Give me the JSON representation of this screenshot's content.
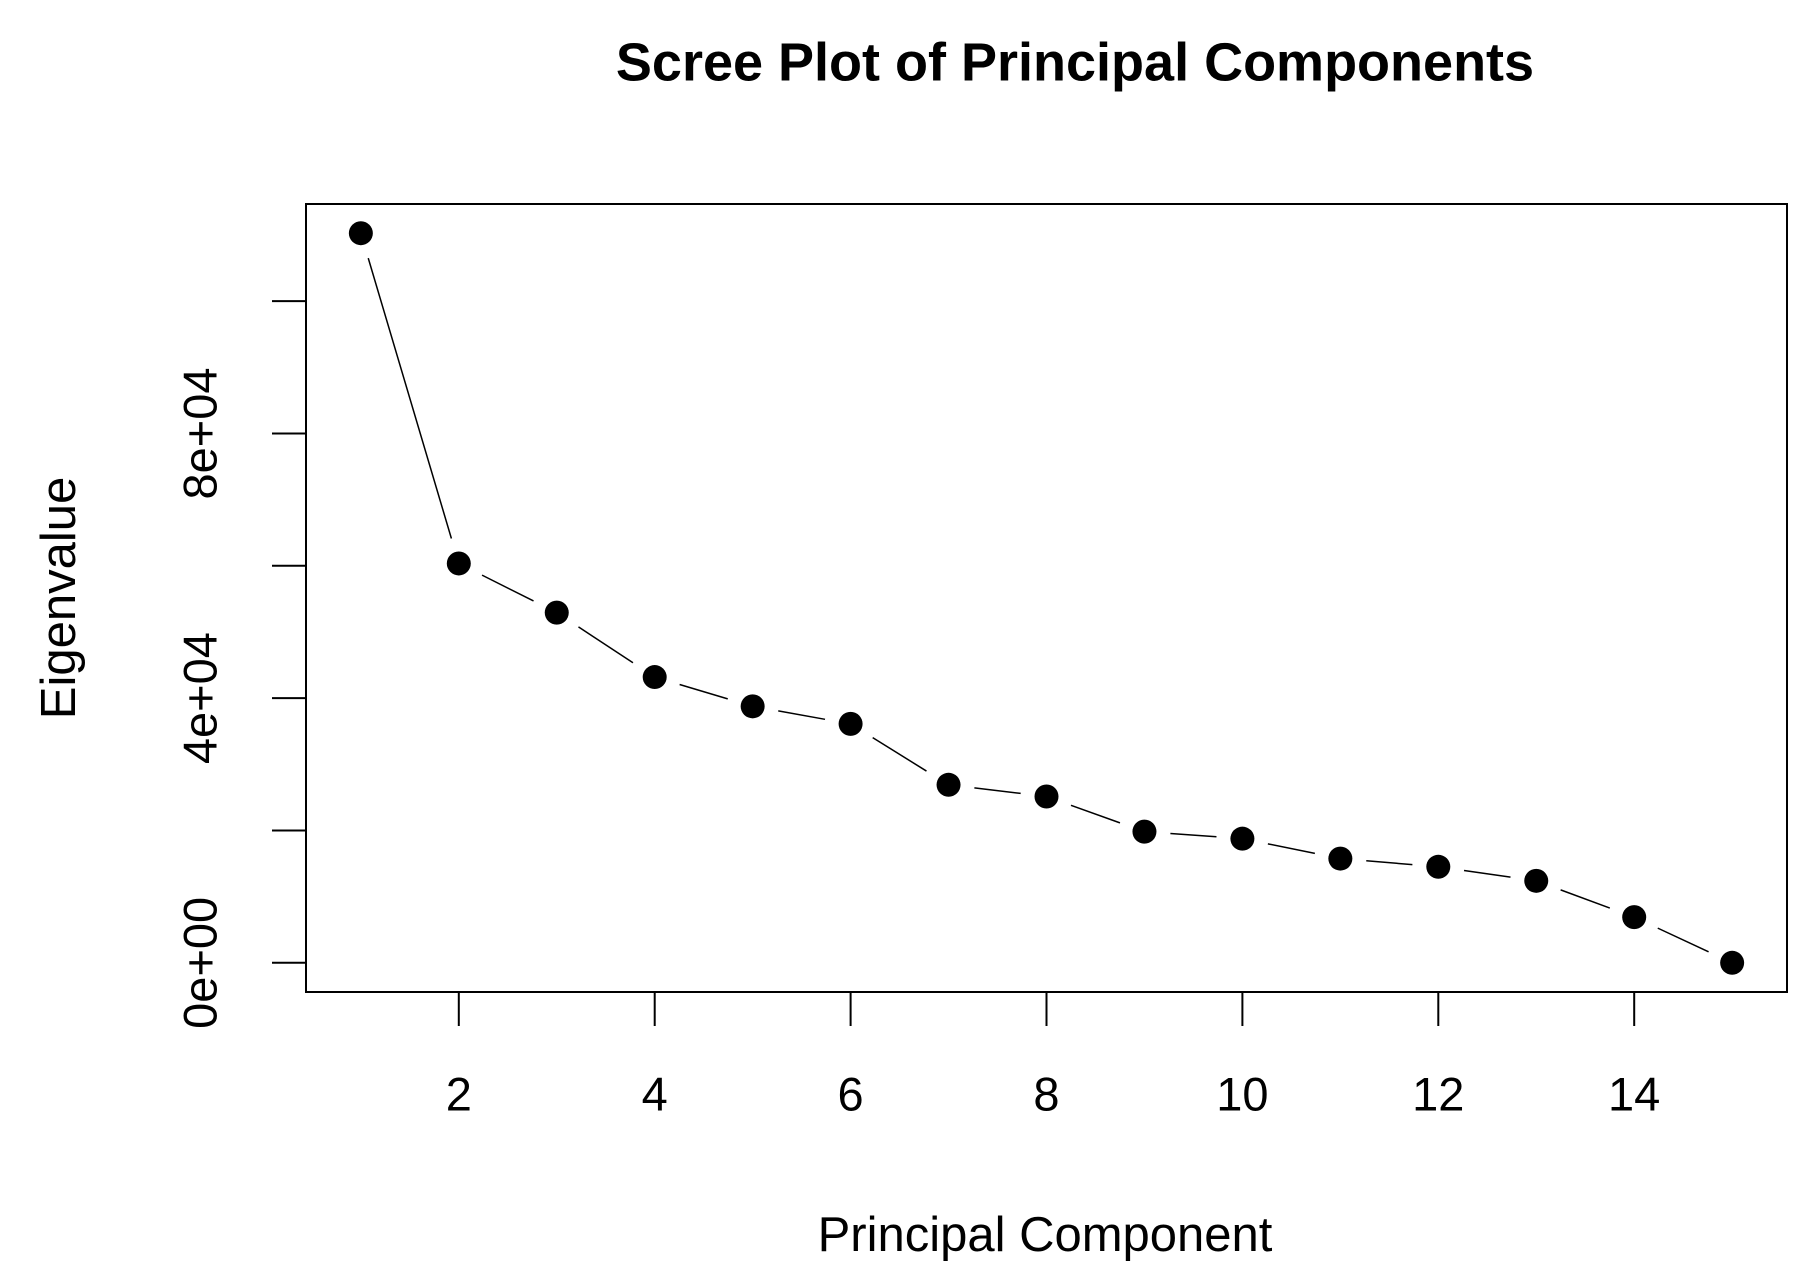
{
  "chart_data": {
    "type": "line",
    "title": "Scree Plot of Principal Components",
    "x_label": "Principal Component",
    "y_label": "Eigenvalue",
    "x": [
      1,
      2,
      3,
      4,
      5,
      6,
      7,
      8,
      9,
      10,
      11,
      12,
      13,
      14,
      15
    ],
    "series": [
      {
        "color": "#000000",
        "values": [
          110265,
          60354,
          52920,
          43186,
          38760,
          36106,
          26903,
          25133,
          19823,
          18761,
          15752,
          14513,
          12389,
          6903,
          0
        ]
      }
    ],
    "xlim": [
      0.44,
      15.56
    ],
    "ylim": [
      -4411,
      114676
    ],
    "xticks": [
      2,
      4,
      6,
      8,
      10,
      12,
      14
    ],
    "yticks": [
      {
        "value": 0,
        "label": "0e+00"
      },
      {
        "value": 40000,
        "label": "4e+04"
      },
      {
        "value": 80000,
        "label": "8e+04"
      }
    ],
    "ytick_marks": [
      20000,
      60000,
      100000
    ]
  }
}
